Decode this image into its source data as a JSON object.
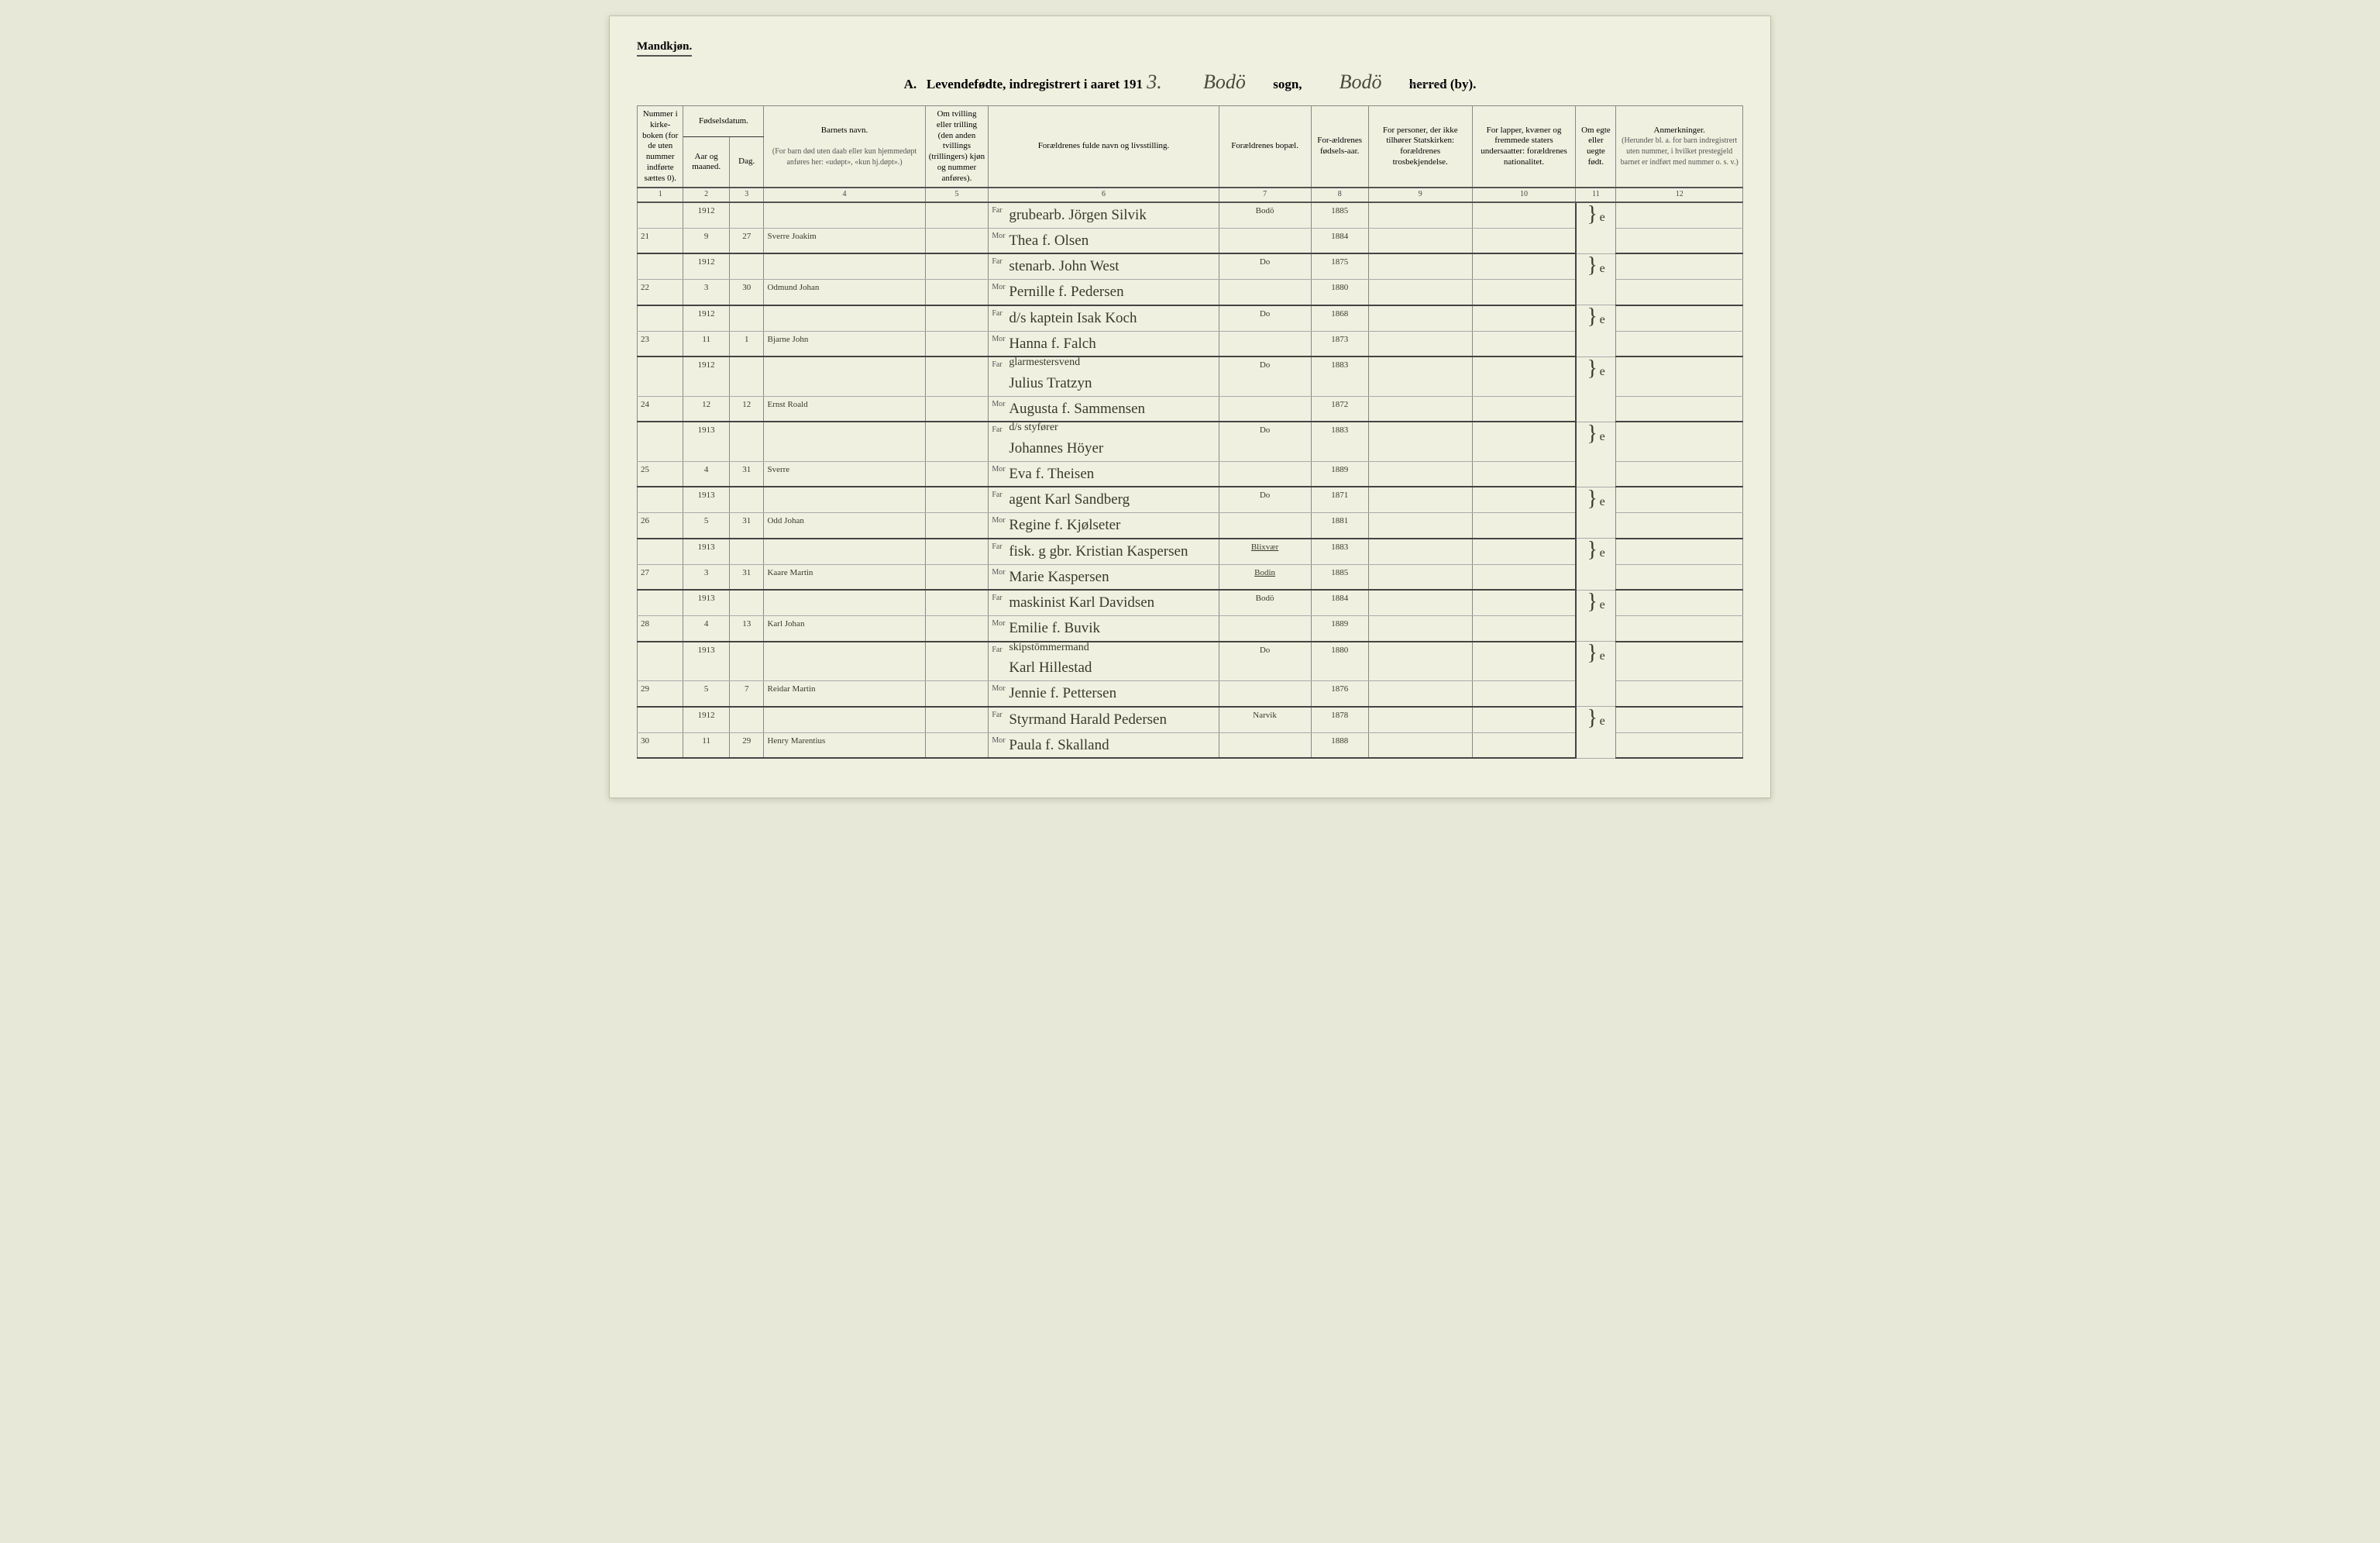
{
  "header": {
    "gender_label": "Mandkjøn.",
    "title_prefix": "A.",
    "title_main": "Levendefødte, indregistrert i aaret 191",
    "year_suffix_hw": "3.",
    "sogn_label": "sogn,",
    "sogn_hw": "Bodö",
    "herred_label_struck": "herred",
    "by_label": "(by).",
    "herred_hw": "Bodö"
  },
  "columns": {
    "h1": "Nummer i kirke-boken (for de uten nummer indførte sættes 0).",
    "h2_top": "Fødselsdatum.",
    "h2a": "Aar og maaned.",
    "h2b": "Dag.",
    "h4_top": "Barnets navn.",
    "h4_sub": "(For barn død uten daab eller kun hjemmedøpt anføres her: «udøpt», «kun hj.døpt».)",
    "h5": "Om tvilling eller trilling (den anden tvillings (trillingers) kjøn og nummer anføres).",
    "h6": "Forældrenes fulde navn og livsstilling.",
    "h7": "Forældrenes bopæl.",
    "h8": "For-ældrenes fødsels-aar.",
    "h9": "For personer, der ikke tilhører Statskirken: forældrenes trosbekjendelse.",
    "h10": "For lapper, kvæner og fremmede staters undersaatter: forældrenes nationalitet.",
    "h11": "Om egte eller uegte født.",
    "h12_top": "Anmerkninger.",
    "h12_sub": "(Herunder bl. a. for barn indregistrert uten nummer, i hvilket prestegjeld barnet er indført med nummer o. s. v.)",
    "far_label": "Far",
    "mor_label": "Mor",
    "colnums": [
      "1",
      "2",
      "3",
      "4",
      "5",
      "6",
      "7",
      "8",
      "9",
      "10",
      "11",
      "12"
    ]
  },
  "rows": [
    {
      "num": "21",
      "year_month_top": "1912",
      "year_month_bot": "9",
      "day": "27",
      "child_name": "Sverre Joakim",
      "far": "grubearb. Jörgen Silvik",
      "mor": "Thea f. Olsen",
      "bopael_top": "Bodö",
      "bopael_bot": "",
      "far_year": "1885",
      "mor_year": "1884",
      "egte": "e"
    },
    {
      "num": "22",
      "year_month_top": "1912",
      "year_month_bot": "3",
      "day": "30",
      "child_name": "Odmund Johan",
      "far": "stenarb. John West",
      "mor": "Pernille f. Pedersen",
      "bopael_top": "Do",
      "bopael_bot": "",
      "far_year": "1875",
      "mor_year": "1880",
      "egte": "e"
    },
    {
      "num": "23",
      "year_month_top": "1912",
      "year_month_bot": "11",
      "day": "1",
      "child_name": "Bjarne John",
      "far": "d/s kaptein Isak Koch",
      "mor": "Hanna f. Falch",
      "bopael_top": "Do",
      "bopael_bot": "",
      "far_year": "1868",
      "mor_year": "1873",
      "egte": "e"
    },
    {
      "num": "24",
      "year_month_top": "1912",
      "year_month_bot": "12",
      "day": "12",
      "child_name": "Ernst Roald",
      "far_pre": "glarmestersvend",
      "far": "Julius Tratzyn",
      "mor": "Augusta f. Sammensen",
      "bopael_top": "Do",
      "bopael_bot": "",
      "far_year": "1883",
      "mor_year": "1872",
      "egte": "e"
    },
    {
      "num": "25",
      "year_month_top": "1913",
      "year_month_bot": "4",
      "day": "31",
      "child_name": "Sverre",
      "far_pre": "d/s styfører",
      "far": "Johannes Höyer",
      "mor": "Eva f. Theisen",
      "bopael_top": "Do",
      "bopael_bot": "",
      "far_year": "1883",
      "mor_year": "1889",
      "egte": "e"
    },
    {
      "num": "26",
      "year_month_top": "1913",
      "year_month_bot": "5",
      "day": "31",
      "child_name": "Odd Johan",
      "far": "agent Karl Sandberg",
      "mor": "Regine f. Kjølseter",
      "bopael_top": "Do",
      "bopael_bot": "",
      "far_year": "1871",
      "mor_year": "1881",
      "egte": "e"
    },
    {
      "num": "27",
      "year_month_top": "1913",
      "year_month_bot": "3",
      "day": "31",
      "child_name": "Kaare Martin",
      "far": "fisk. g gbr. Kristian Kaspersen",
      "mor": "Marie Kaspersen",
      "bopael_top": "Blixvær",
      "bopael_bot": "Bodin",
      "bopael_underline": true,
      "far_year": "1883",
      "mor_year": "1885",
      "egte": "e"
    },
    {
      "num": "28",
      "year_month_top": "1913",
      "year_month_bot": "4",
      "day": "13",
      "child_name": "Karl Johan",
      "far": "maskinist Karl Davidsen",
      "mor": "Emilie f. Buvik",
      "bopael_top": "Bodö",
      "bopael_bot": "",
      "far_year": "1884",
      "mor_year": "1889",
      "egte": "e"
    },
    {
      "num": "29",
      "year_month_top": "1913",
      "year_month_bot": "5",
      "day": "7",
      "child_name": "Reidar Martin",
      "far_pre": "skipstömmermand",
      "far": "Karl Hillestad",
      "mor": "Jennie f. Pettersen",
      "bopael_top": "Do",
      "bopael_bot": "",
      "far_year": "1880",
      "mor_year": "1876",
      "egte": "e"
    },
    {
      "num": "30",
      "year_month_top": "1912",
      "year_month_bot": "11",
      "day": "29",
      "child_name": "Henry Marentius",
      "far": "Styrmand Harald Pedersen",
      "mor": "Paula f. Skalland",
      "bopael_top": "Narvik",
      "bopael_bot": "",
      "far_year": "1878",
      "mor_year": "1888",
      "egte": "e"
    }
  ],
  "style": {
    "page_bg": "#f0f0e0",
    "body_bg": "#e8e8d8",
    "ink_color": "#3a3a2a",
    "rule_color": "#888",
    "heavy_rule_color": "#444"
  }
}
